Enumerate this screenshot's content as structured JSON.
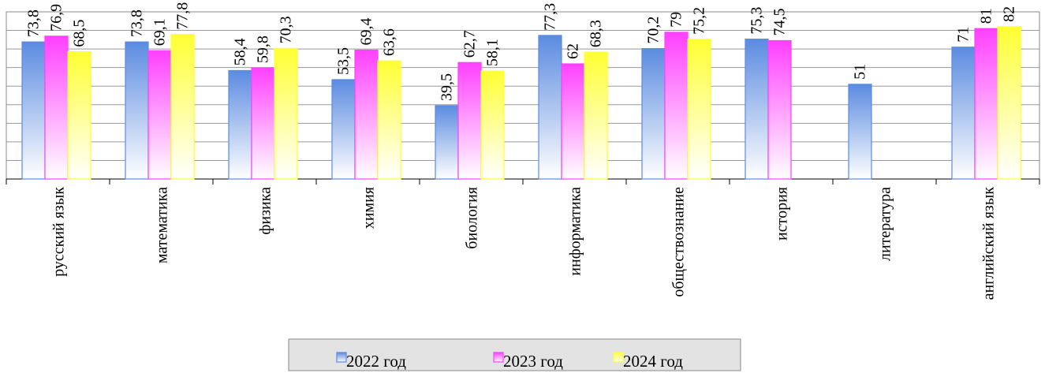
{
  "chart_data": {
    "type": "bar",
    "title": "",
    "xlabel": "",
    "ylabel": "",
    "ylim": [
      0,
      90
    ],
    "grid": true,
    "legend_position": "bottom",
    "categories": [
      "русский язык",
      "математика",
      "физика",
      "химия",
      "биология",
      "информатика",
      "обществознание",
      "история",
      "литература",
      "английский язык"
    ],
    "series": [
      {
        "name": "2022 год",
        "color": "#5b8be0",
        "values": [
          73.8,
          73.8,
          58.4,
          53.5,
          39.5,
          77.3,
          70.2,
          75.3,
          51,
          71
        ],
        "labels": [
          "73,8",
          "73,8",
          "58,4",
          "53,5",
          "39,5",
          "77,3",
          "70,2",
          "75,3",
          "51",
          "71"
        ]
      },
      {
        "name": "2023 год",
        "color": "#ff40ff",
        "values": [
          76.9,
          69.1,
          59.8,
          69.4,
          62.7,
          62,
          79,
          74.5,
          null,
          81
        ],
        "labels": [
          "76,9",
          "69,1",
          "59,8",
          "69,4",
          "62,7",
          "62",
          "79",
          "74,5",
          "",
          "81"
        ]
      },
      {
        "name": "2024 год",
        "color": "#ffff33",
        "values": [
          68.5,
          77.8,
          70.3,
          63.6,
          58.1,
          68.3,
          75.2,
          null,
          null,
          82
        ],
        "labels": [
          "68,5",
          "77,8",
          "70,3",
          "63,6",
          "58,1",
          "68,3",
          "75,2",
          "",
          "",
          "82"
        ]
      }
    ]
  }
}
